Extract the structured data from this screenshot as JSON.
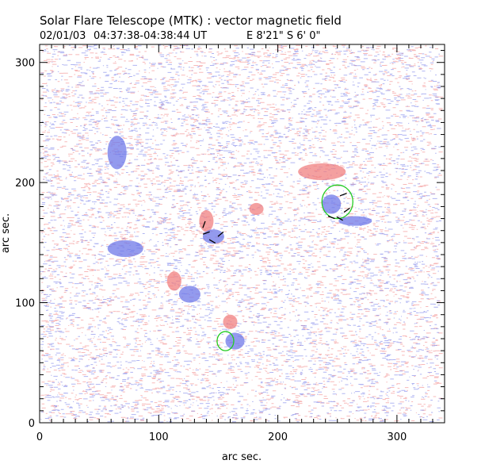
{
  "chart_data": {
    "type": "heatmap",
    "title": "Solar Flare Telescope (MTK) : vector magnetic field",
    "subtitle": {
      "date": "02/01/03",
      "time_range": "04:37:38-04:38:44 UT",
      "position": "E 8'21\"  S 6' 0\""
    },
    "xlabel": "arc sec.",
    "ylabel": "arc sec.",
    "xlim": [
      0,
      340
    ],
    "ylim": [
      0,
      315
    ],
    "xticks": [
      0,
      100,
      200,
      300
    ],
    "yticks": [
      0,
      100,
      200,
      300
    ],
    "colors": {
      "positive_polarity": "#f08080",
      "negative_polarity": "#6f78e8",
      "contour": "#22cc22",
      "transverse_vectors": "#000000",
      "background": "#ffffff"
    },
    "field_regions": [
      {
        "polarity": "positive",
        "x": 140,
        "y": 168,
        "rx": 6,
        "ry": 9
      },
      {
        "polarity": "negative",
        "x": 146,
        "y": 155,
        "rx": 9,
        "ry": 6
      },
      {
        "polarity": "positive",
        "x": 113,
        "y": 118,
        "rx": 6,
        "ry": 8
      },
      {
        "polarity": "negative",
        "x": 126,
        "y": 107,
        "rx": 9,
        "ry": 7
      },
      {
        "polarity": "positive",
        "x": 237,
        "y": 209,
        "rx": 20,
        "ry": 7
      },
      {
        "polarity": "negative",
        "x": 245,
        "y": 182,
        "rx": 8,
        "ry": 8
      },
      {
        "polarity": "positive",
        "x": 160,
        "y": 84,
        "rx": 6,
        "ry": 6
      },
      {
        "polarity": "negative",
        "x": 164,
        "y": 68,
        "rx": 8,
        "ry": 7
      },
      {
        "polarity": "negative",
        "x": 65,
        "y": 225,
        "rx": 8,
        "ry": 14
      },
      {
        "polarity": "negative",
        "x": 72,
        "y": 145,
        "rx": 15,
        "ry": 7
      },
      {
        "polarity": "positive",
        "x": 182,
        "y": 178,
        "rx": 6,
        "ry": 5
      },
      {
        "polarity": "negative",
        "x": 265,
        "y": 168,
        "rx": 14,
        "ry": 4
      }
    ],
    "contours": [
      {
        "color": "green",
        "center": [
          250,
          184
        ],
        "rx": 13,
        "ry": 14
      },
      {
        "color": "green",
        "center": [
          156,
          68
        ],
        "rx": 7,
        "ry": 8
      }
    ],
    "transverse_vectors": [
      {
        "x": 138,
        "y": 165,
        "angle": 70
      },
      {
        "x": 140,
        "y": 158,
        "angle": 20
      },
      {
        "x": 145,
        "y": 151,
        "angle": -30
      },
      {
        "x": 152,
        "y": 157,
        "angle": 40
      },
      {
        "x": 255,
        "y": 190,
        "angle": 20
      },
      {
        "x": 258,
        "y": 177,
        "angle": 35
      },
      {
        "x": 252,
        "y": 170,
        "angle": -30
      },
      {
        "x": 245,
        "y": 171,
        "angle": -20
      }
    ]
  }
}
